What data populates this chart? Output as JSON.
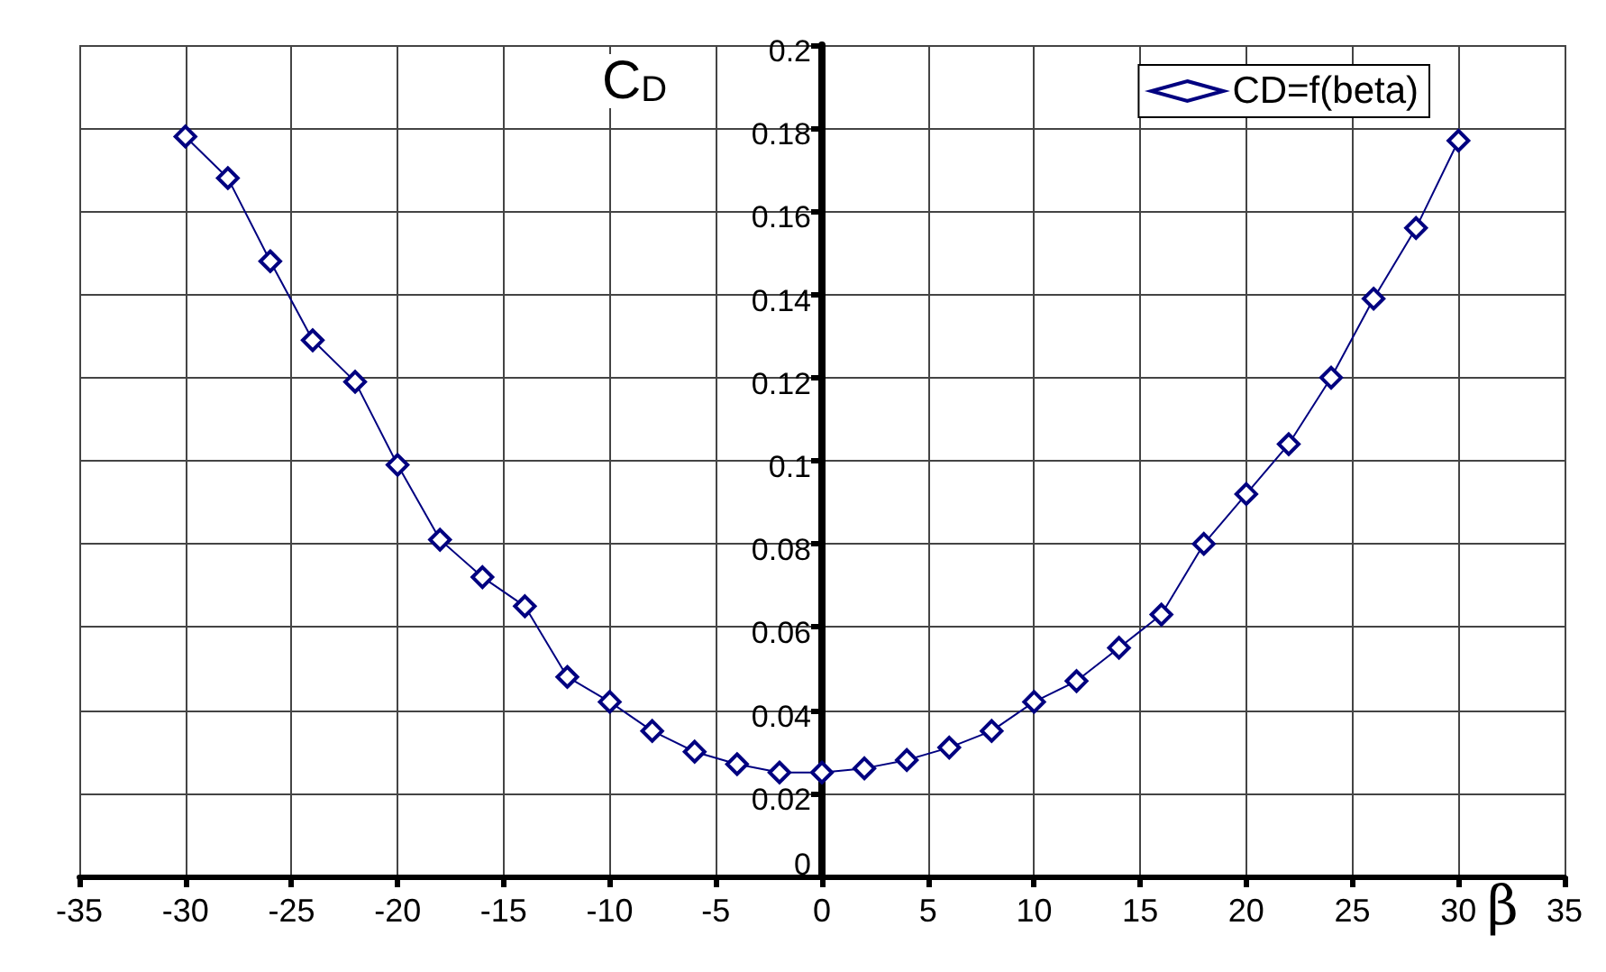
{
  "chart_data": {
    "type": "line",
    "xlabel": "β",
    "ylabel": "C$_{D}$",
    "x": [
      -30,
      -28,
      -26,
      -24,
      -22,
      -20,
      -18,
      -16,
      -14,
      -12,
      -10,
      -8,
      -6,
      -4,
      -2,
      0,
      2,
      4,
      6,
      8,
      10,
      12,
      14,
      16,
      18,
      20,
      22,
      24,
      26,
      28,
      30
    ],
    "series": [
      {
        "name": "CD=f(beta)",
        "color": "#000080",
        "values": [
          0.178,
          0.168,
          0.148,
          0.129,
          0.119,
          0.099,
          0.081,
          0.072,
          0.065,
          0.048,
          0.042,
          0.035,
          0.03,
          0.027,
          0.025,
          0.025,
          0.026,
          0.028,
          0.031,
          0.035,
          0.042,
          0.047,
          0.055,
          0.063,
          0.08,
          0.092,
          0.104,
          0.12,
          0.139,
          0.156,
          0.177
        ]
      }
    ],
    "xlim": [
      -35,
      35
    ],
    "xticks": [
      -35,
      -30,
      -25,
      -20,
      -15,
      -10,
      -5,
      0,
      5,
      10,
      15,
      20,
      25,
      30,
      35
    ],
    "ylim": [
      0,
      0.2
    ],
    "yticks": [
      0,
      0.02,
      0.04,
      0.06,
      0.08,
      0.1,
      0.12,
      0.14,
      0.16,
      0.18,
      0.2
    ],
    "grid": true,
    "legend": "top right",
    "marker": "diamond",
    "line_style": "solid"
  }
}
